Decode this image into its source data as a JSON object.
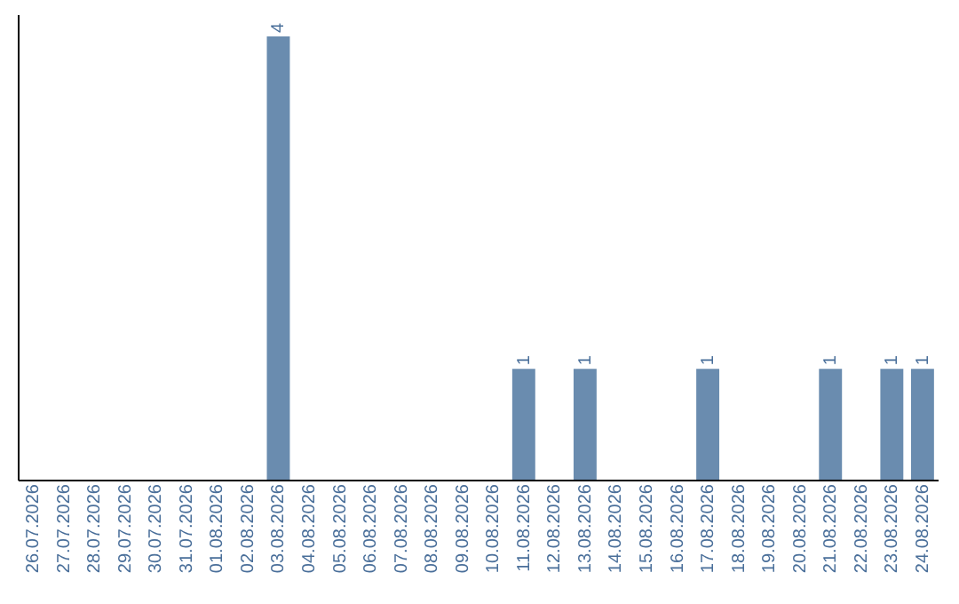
{
  "chart_data": {
    "type": "bar",
    "categories": [
      "26.07.2026",
      "27.07.2026",
      "28.07.2026",
      "29.07.2026",
      "30.07.2026",
      "31.07.2026",
      "01.08.2026",
      "02.08.2026",
      "03.08.2026",
      "04.08.2026",
      "05.08.2026",
      "06.08.2026",
      "07.08.2026",
      "08.08.2026",
      "09.08.2026",
      "10.08.2026",
      "11.08.2026",
      "12.08.2026",
      "13.08.2026",
      "14.08.2026",
      "15.08.2026",
      "16.08.2026",
      "17.08.2026",
      "18.08.2026",
      "19.08.2026",
      "20.08.2026",
      "21.08.2026",
      "22.08.2026",
      "23.08.2026",
      "24.08.2026"
    ],
    "values": [
      0,
      0,
      0,
      0,
      0,
      0,
      0,
      0,
      4,
      0,
      0,
      0,
      0,
      0,
      0,
      0,
      1,
      0,
      1,
      0,
      0,
      0,
      1,
      0,
      0,
      0,
      1,
      0,
      1,
      1
    ],
    "value_labels": [
      null,
      null,
      null,
      null,
      null,
      null,
      null,
      null,
      "4",
      null,
      null,
      null,
      null,
      null,
      null,
      null,
      "1",
      null,
      "1",
      null,
      null,
      null,
      "1",
      null,
      null,
      null,
      "1",
      null,
      "1",
      "1"
    ],
    "color": "#6a8caf",
    "ylim": [
      0,
      4.2
    ],
    "tick_labels": "x"
  }
}
